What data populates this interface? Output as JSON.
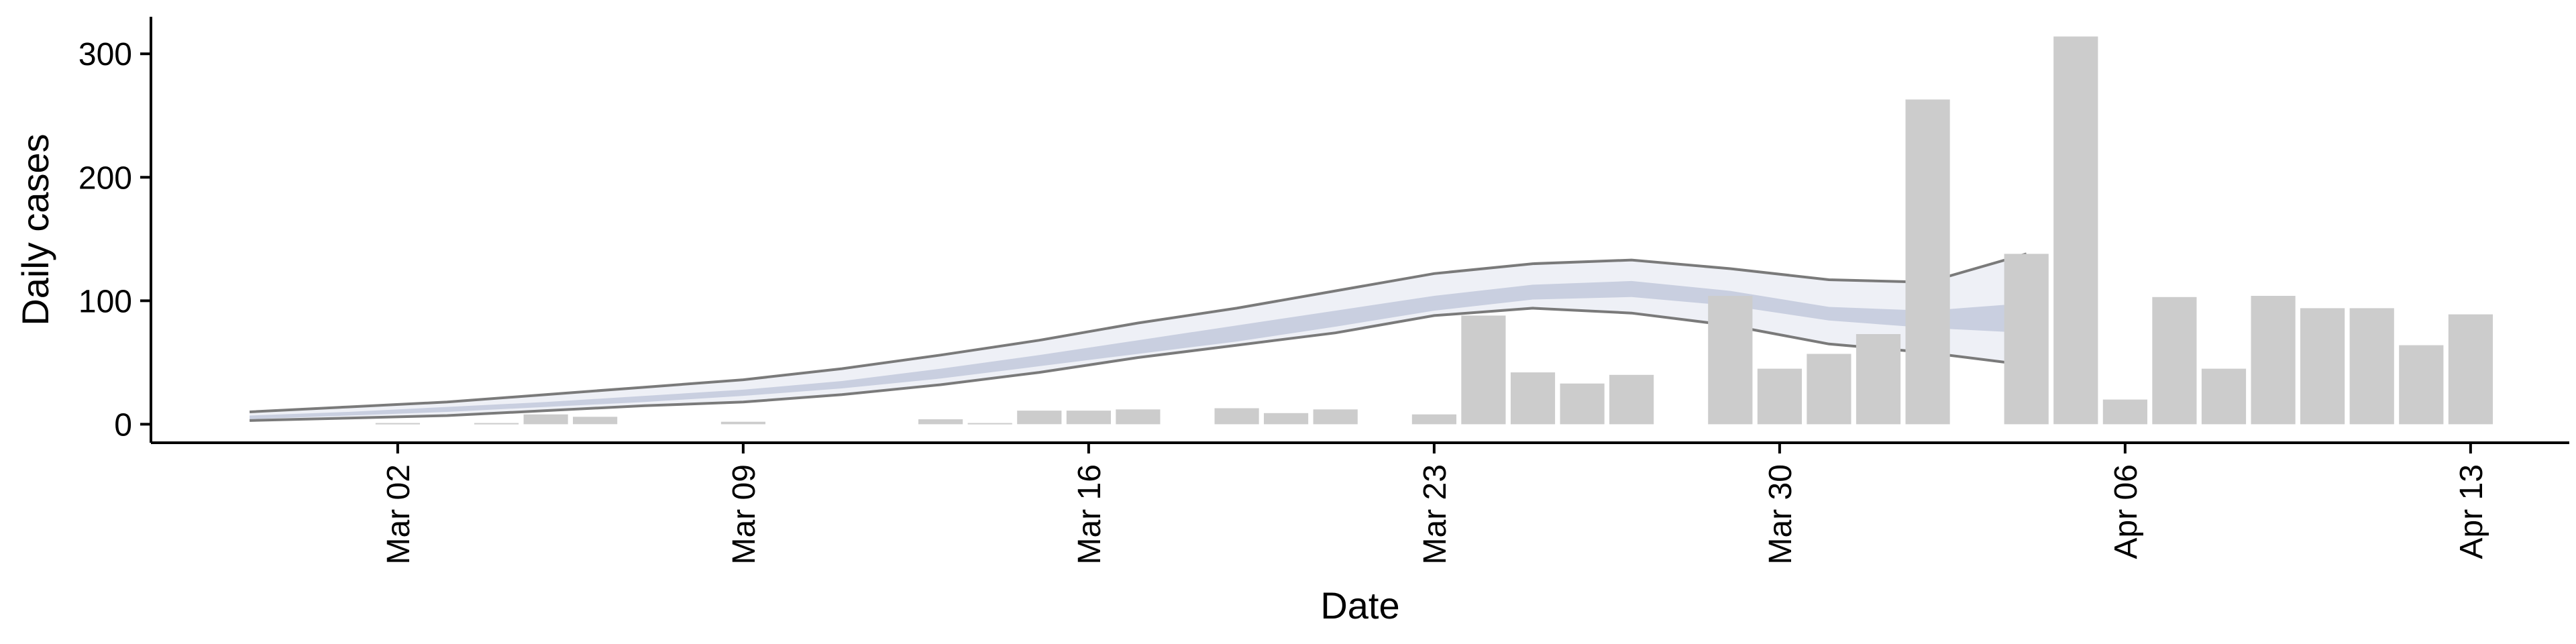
{
  "chart_data": {
    "type": "bar",
    "xlabel": "Date",
    "ylabel": "Daily cases",
    "ylim": [
      -15,
      330
    ],
    "yticks": [
      0,
      100,
      200,
      300
    ],
    "xticks": [
      {
        "date": "2020-03-02",
        "label": "Mar 02"
      },
      {
        "date": "2020-03-09",
        "label": "Mar 09"
      },
      {
        "date": "2020-03-16",
        "label": "Mar 16"
      },
      {
        "date": "2020-03-23",
        "label": "Mar 23"
      },
      {
        "date": "2020-03-30",
        "label": "Mar 30"
      },
      {
        "date": "2020-04-06",
        "label": "Apr 06"
      },
      {
        "date": "2020-04-13",
        "label": "Apr 13"
      }
    ],
    "xlim": [
      "2020-02-26",
      "2020-04-15"
    ],
    "grid": false,
    "colors": {
      "bars": "#cccccc",
      "band_outer": "#eef0f6",
      "band_inner": "#c9cfe0",
      "band_lines": "#7a7a7a"
    },
    "bars": {
      "name": "Daily cases",
      "dates": [
        "2020-03-02",
        "2020-03-04",
        "2020-03-05",
        "2020-03-06",
        "2020-03-09",
        "2020-03-13",
        "2020-03-14",
        "2020-03-15",
        "2020-03-16",
        "2020-03-17",
        "2020-03-19",
        "2020-03-20",
        "2020-03-21",
        "2020-03-23",
        "2020-03-24",
        "2020-03-25",
        "2020-03-26",
        "2020-03-27",
        "2020-03-29",
        "2020-03-30",
        "2020-03-31",
        "2020-04-01",
        "2020-04-02",
        "2020-04-04",
        "2020-04-05",
        "2020-04-06",
        "2020-04-07",
        "2020-04-08",
        "2020-04-09",
        "2020-04-10",
        "2020-04-11",
        "2020-04-12",
        "2020-04-13"
      ],
      "values": [
        1,
        1,
        8,
        6,
        2,
        4,
        1,
        11,
        11,
        12,
        13,
        9,
        12,
        8,
        88,
        42,
        33,
        40,
        104,
        45,
        57,
        73,
        263,
        138,
        314,
        20,
        103,
        45,
        104,
        94,
        94,
        64,
        89
      ]
    },
    "estimate_band": {
      "dates": [
        "2020-02-28",
        "2020-03-01",
        "2020-03-03",
        "2020-03-05",
        "2020-03-07",
        "2020-03-09",
        "2020-03-11",
        "2020-03-13",
        "2020-03-15",
        "2020-03-17",
        "2020-03-19",
        "2020-03-21",
        "2020-03-23",
        "2020-03-25",
        "2020-03-27",
        "2020-03-29",
        "2020-03-31",
        "2020-04-02",
        "2020-04-04"
      ],
      "outer_upper": [
        10,
        14,
        18,
        24,
        30,
        36,
        45,
        56,
        68,
        82,
        94,
        108,
        122,
        130,
        133,
        126,
        117,
        115,
        138
      ],
      "outer_lower": [
        3,
        5,
        7,
        11,
        15,
        18,
        24,
        32,
        42,
        54,
        64,
        74,
        88,
        94,
        90,
        80,
        65,
        58,
        48
      ],
      "inner_upper": [
        7,
        10,
        14,
        18,
        23,
        28,
        35,
        45,
        56,
        68,
        80,
        92,
        104,
        113,
        116,
        108,
        95,
        92,
        98
      ],
      "inner_lower": [
        4,
        7,
        10,
        14,
        18,
        23,
        29,
        37,
        47,
        57,
        67,
        79,
        92,
        101,
        103,
        96,
        84,
        78,
        74
      ]
    }
  }
}
